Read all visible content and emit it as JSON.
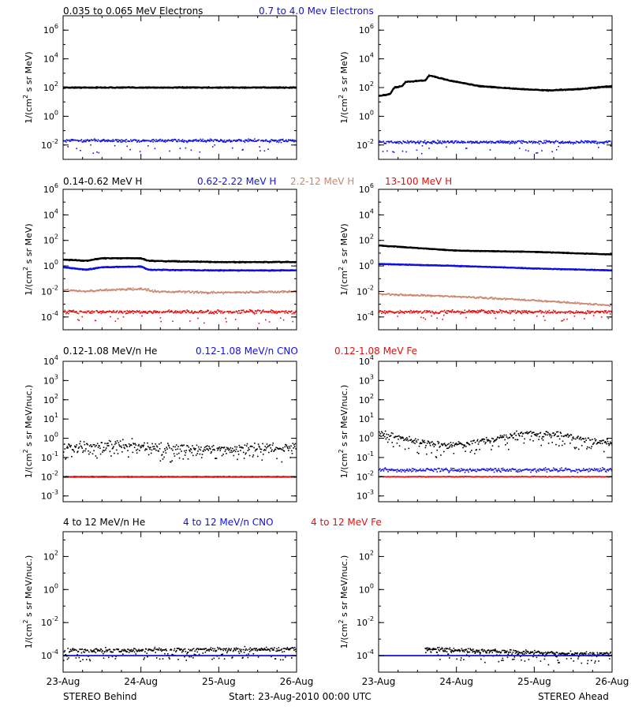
{
  "colors": {
    "black": "#000000",
    "blue": "#1010e0",
    "tan": "#c8876e",
    "red": "#e01010"
  },
  "footer": {
    "left": "STEREO Behind",
    "center": "Start: 23-Aug-2010 00:00 UTC",
    "right": "STEREO Ahead"
  },
  "x_ticks": [
    "23-Aug",
    "24-Aug",
    "25-Aug",
    "26-Aug"
  ],
  "rows": [
    {
      "id": "electrons",
      "legend": [
        {
          "text": "0.035 to 0.065 MeV Electrons",
          "color": "black"
        },
        {
          "text": "0.7 to 4.0 Mev Electrons",
          "color": "blue"
        }
      ]
    },
    {
      "id": "protons",
      "legend": [
        {
          "text": "0.14-0.62 MeV H",
          "color": "black"
        },
        {
          "text": "0.62-2.22 MeV H",
          "color": "blue"
        },
        {
          "text": "2.2-12 MeV H",
          "color": "tan"
        },
        {
          "text": "13-100 MeV H",
          "color": "red"
        }
      ]
    },
    {
      "id": "heavy-low",
      "legend": [
        {
          "text": "0.12-1.08 MeV/n He",
          "color": "black"
        },
        {
          "text": "0.12-1.08 MeV/n CNO",
          "color": "blue"
        },
        {
          "text": "0.12-1.08 MeV Fe",
          "color": "red"
        }
      ]
    },
    {
      "id": "heavy-high",
      "legend": [
        {
          "text": "4 to 12 MeV/n He",
          "color": "black"
        },
        {
          "text": "4 to 12 MeV/n CNO",
          "color": "blue"
        },
        {
          "text": "4 to 12 MeV Fe",
          "color": "red"
        }
      ]
    }
  ],
  "chart_data": [
    {
      "type": "scatter",
      "row": 0,
      "spacecraft": "STEREO Behind",
      "ylabel_main": "1/(cm",
      "ylabel_sup": "2",
      "ylabel_rest": " s sr MeV)",
      "ylim_log10": [
        -3,
        7
      ],
      "yticks": [
        {
          "b": "10",
          "e": "6",
          "v": 6
        },
        {
          "b": "10",
          "e": "4",
          "v": 4
        },
        {
          "b": "10",
          "e": "2",
          "v": 2
        },
        {
          "b": "10",
          "e": "0",
          "v": 0
        },
        {
          "b": "10",
          "e": "-2",
          "v": -2
        }
      ],
      "x": [
        0,
        3
      ],
      "x_unit": "days since 23-Aug-2010",
      "series": [
        {
          "color": "black",
          "kind": "line",
          "points": [
            [
              0,
              2
            ],
            [
              3,
              2
            ]
          ],
          "noise": 0.05
        },
        {
          "color": "blue",
          "kind": "band",
          "points": [
            [
              0,
              -1.7
            ],
            [
              3,
              -1.7
            ]
          ],
          "noise": 0.15,
          "outliers": true
        }
      ]
    },
    {
      "type": "scatter",
      "row": 0,
      "spacecraft": "STEREO Ahead",
      "ylabel_main": "1/(cm",
      "ylabel_sup": "2",
      "ylabel_rest": " s sr MeV)",
      "ylim_log10": [
        -3,
        7
      ],
      "yticks": [
        {
          "b": "10",
          "e": "6",
          "v": 6
        },
        {
          "b": "10",
          "e": "4",
          "v": 4
        },
        {
          "b": "10",
          "e": "2",
          "v": 2
        },
        {
          "b": "10",
          "e": "0",
          "v": 0
        },
        {
          "b": "10",
          "e": "-2",
          "v": -2
        }
      ],
      "x": [
        0,
        3
      ],
      "x_unit": "days since 23-Aug-2010",
      "series": [
        {
          "color": "black",
          "kind": "line",
          "points": [
            [
              0,
              1.4
            ],
            [
              0.15,
              1.55
            ],
            [
              0.2,
              2.0
            ],
            [
              0.3,
              2.1
            ],
            [
              0.35,
              2.4
            ],
            [
              0.6,
              2.5
            ],
            [
              0.65,
              2.85
            ],
            [
              0.9,
              2.5
            ],
            [
              1.3,
              2.1
            ],
            [
              1.8,
              1.9
            ],
            [
              2.2,
              1.8
            ],
            [
              2.6,
              1.9
            ],
            [
              3,
              2.1
            ]
          ],
          "noise": 0.05
        },
        {
          "color": "blue",
          "kind": "band",
          "points": [
            [
              0,
              -1.8
            ],
            [
              3,
              -1.8
            ]
          ],
          "noise": 0.15,
          "outliers": true
        }
      ]
    },
    {
      "type": "scatter",
      "row": 1,
      "spacecraft": "STEREO Behind",
      "ylabel_main": "1/(cm",
      "ylabel_sup": "2",
      "ylabel_rest": " s sr MeV)",
      "ylim_log10": [
        -5,
        6
      ],
      "yticks": [
        {
          "b": "10",
          "e": "6",
          "v": 6
        },
        {
          "b": "10",
          "e": "4",
          "v": 4
        },
        {
          "b": "10",
          "e": "2",
          "v": 2
        },
        {
          "b": "10",
          "e": "0",
          "v": 0
        },
        {
          "b": "10",
          "e": "-2",
          "v": -2
        },
        {
          "b": "10",
          "e": "-4",
          "v": -4
        }
      ],
      "x": [
        0,
        3
      ],
      "x_unit": "days since 23-Aug-2010",
      "series": [
        {
          "color": "black",
          "kind": "line",
          "points": [
            [
              0,
              0.5
            ],
            [
              0.3,
              0.4
            ],
            [
              0.5,
              0.6
            ],
            [
              1.0,
              0.6
            ],
            [
              1.1,
              0.4
            ],
            [
              2,
              0.3
            ],
            [
              3,
              0.3
            ]
          ],
          "noise": 0.05
        },
        {
          "color": "blue",
          "kind": "line",
          "points": [
            [
              0,
              -0.1
            ],
            [
              0.3,
              -0.3
            ],
            [
              0.5,
              -0.1
            ],
            [
              1.0,
              -0.05
            ],
            [
              1.1,
              -0.3
            ],
            [
              2,
              -0.35
            ],
            [
              3,
              -0.35
            ]
          ],
          "noise": 0.05
        },
        {
          "color": "tan",
          "kind": "band",
          "points": [
            [
              0,
              -1.9
            ],
            [
              0.3,
              -2.0
            ],
            [
              0.5,
              -1.9
            ],
            [
              1.0,
              -1.8
            ],
            [
              1.2,
              -2.0
            ],
            [
              2,
              -2.1
            ],
            [
              3,
              -2.0
            ]
          ],
          "noise": 0.12
        },
        {
          "color": "red",
          "kind": "band",
          "points": [
            [
              0,
              -3.6
            ],
            [
              3,
              -3.6
            ]
          ],
          "noise": 0.2,
          "outliers": true
        }
      ]
    },
    {
      "type": "scatter",
      "row": 1,
      "spacecraft": "STEREO Ahead",
      "ylabel_main": "1/(cm",
      "ylabel_sup": "2",
      "ylabel_rest": " s sr MeV)",
      "ylim_log10": [
        -5,
        6
      ],
      "yticks": [
        {
          "b": "10",
          "e": "6",
          "v": 6
        },
        {
          "b": "10",
          "e": "4",
          "v": 4
        },
        {
          "b": "10",
          "e": "2",
          "v": 2
        },
        {
          "b": "10",
          "e": "0",
          "v": 0
        },
        {
          "b": "10",
          "e": "-2",
          "v": -2
        },
        {
          "b": "10",
          "e": "-4",
          "v": -4
        }
      ],
      "x": [
        0,
        3
      ],
      "x_unit": "days since 23-Aug-2010",
      "series": [
        {
          "color": "black",
          "kind": "line",
          "points": [
            [
              0,
              1.6
            ],
            [
              0.5,
              1.4
            ],
            [
              1,
              1.2
            ],
            [
              2,
              1.1
            ],
            [
              3,
              0.9
            ]
          ],
          "noise": 0.04
        },
        {
          "color": "blue",
          "kind": "line",
          "points": [
            [
              0,
              0.15
            ],
            [
              1,
              0.0
            ],
            [
              2,
              -0.2
            ],
            [
              3,
              -0.35
            ]
          ],
          "noise": 0.04
        },
        {
          "color": "tan",
          "kind": "band",
          "points": [
            [
              0,
              -2.2
            ],
            [
              1,
              -2.4
            ],
            [
              2,
              -2.7
            ],
            [
              3,
              -3.1
            ]
          ],
          "noise": 0.1
        },
        {
          "color": "red",
          "kind": "band",
          "points": [
            [
              0,
              -3.6
            ],
            [
              3,
              -3.6
            ]
          ],
          "noise": 0.2,
          "outliers": true
        }
      ]
    },
    {
      "type": "scatter",
      "row": 2,
      "spacecraft": "STEREO Behind",
      "ylabel_main": "1/(cm",
      "ylabel_sup": "2",
      "ylabel_rest": " s sr MeV/nuc.)",
      "ylim_log10": [
        -3.3,
        4
      ],
      "yticks": [
        {
          "b": "10",
          "e": "4",
          "v": 4
        },
        {
          "b": "10",
          "e": "3",
          "v": 3
        },
        {
          "b": "10",
          "e": "2",
          "v": 2
        },
        {
          "b": "10",
          "e": "1",
          "v": 1
        },
        {
          "b": "10",
          "e": "0",
          "v": 0
        },
        {
          "b": "10",
          "e": "-1",
          "v": -1
        },
        {
          "b": "10",
          "e": "-2",
          "v": -2
        },
        {
          "b": "10",
          "e": "-3",
          "v": -3
        }
      ],
      "x": [
        0,
        3
      ],
      "x_unit": "days since 23-Aug-2010",
      "series": [
        {
          "color": "black",
          "kind": "scatter",
          "points": [
            [
              0,
              -0.5
            ],
            [
              0.7,
              -0.3
            ],
            [
              1.2,
              -0.5
            ],
            [
              2,
              -0.55
            ],
            [
              3,
              -0.5
            ]
          ],
          "noise": 0.25
        },
        {
          "color": "blue",
          "kind": "floor",
          "points": [
            [
              0,
              -2.0
            ],
            [
              3,
              -2.0
            ]
          ],
          "noise": 0.02
        },
        {
          "color": "red",
          "kind": "floor",
          "points": [
            [
              0,
              -2.02
            ],
            [
              3,
              -2.02
            ]
          ],
          "noise": 0.01
        }
      ]
    },
    {
      "type": "scatter",
      "row": 2,
      "spacecraft": "STEREO Ahead",
      "ylabel_main": "1/(cm",
      "ylabel_sup": "2",
      "ylabel_rest": " s sr MeV/nuc.)",
      "ylim_log10": [
        -3.3,
        4
      ],
      "yticks": [
        {
          "b": "10",
          "e": "4",
          "v": 4
        },
        {
          "b": "10",
          "e": "3",
          "v": 3
        },
        {
          "b": "10",
          "e": "2",
          "v": 2
        },
        {
          "b": "10",
          "e": "1",
          "v": 1
        },
        {
          "b": "10",
          "e": "0",
          "v": 0
        },
        {
          "b": "10",
          "e": "-1",
          "v": -1
        },
        {
          "b": "10",
          "e": "-2",
          "v": -2
        },
        {
          "b": "10",
          "e": "-3",
          "v": -3
        }
      ],
      "x": [
        0,
        3
      ],
      "x_unit": "days since 23-Aug-2010",
      "series": [
        {
          "color": "black",
          "kind": "scatter",
          "points": [
            [
              0,
              0.25
            ],
            [
              0.4,
              -0.1
            ],
            [
              0.9,
              -0.4
            ],
            [
              1.4,
              -0.1
            ],
            [
              1.9,
              0.3
            ],
            [
              2.3,
              0.2
            ],
            [
              2.7,
              -0.1
            ],
            [
              3,
              -0.25
            ]
          ],
          "noise": 0.15
        },
        {
          "color": "blue",
          "kind": "floor",
          "points": [
            [
              0,
              -1.65
            ],
            [
              3,
              -1.65
            ]
          ],
          "noise": 0.15
        },
        {
          "color": "red",
          "kind": "floor",
          "points": [
            [
              0,
              -2.0
            ],
            [
              3,
              -2.0
            ]
          ],
          "noise": 0.03
        }
      ]
    },
    {
      "type": "scatter",
      "row": 3,
      "spacecraft": "STEREO Behind",
      "ylabel_main": "1/(cm",
      "ylabel_sup": "2",
      "ylabel_rest": " s sr MeV/nuc.)",
      "ylim_log10": [
        -5,
        3.5
      ],
      "yticks": [
        {
          "b": "10",
          "e": "2",
          "v": 2
        },
        {
          "b": "10",
          "e": "0",
          "v": 0
        },
        {
          "b": "10",
          "e": "-2",
          "v": -2
        },
        {
          "b": "10",
          "e": "-4",
          "v": -4
        }
      ],
      "x": [
        0,
        3
      ],
      "x_unit": "days since 23-Aug-2010",
      "series": [
        {
          "color": "black",
          "kind": "scatter",
          "points": [
            [
              0,
              -3.7
            ],
            [
              3,
              -3.6
            ]
          ],
          "noise": 0.12
        },
        {
          "color": "blue",
          "kind": "floor",
          "points": [
            [
              0,
              -4.0
            ],
            [
              3,
              -4.0
            ]
          ],
          "noise": 0.0
        }
      ]
    },
    {
      "type": "scatter",
      "row": 3,
      "spacecraft": "STEREO Ahead",
      "ylabel_main": "1/(cm",
      "ylabel_sup": "2",
      "ylabel_rest": " s sr MeV/nuc.)",
      "ylim_log10": [
        -5,
        3.5
      ],
      "yticks": [
        {
          "b": "10",
          "e": "2",
          "v": 2
        },
        {
          "b": "10",
          "e": "0",
          "v": 0
        },
        {
          "b": "10",
          "e": "-2",
          "v": -2
        },
        {
          "b": "10",
          "e": "-4",
          "v": -4
        }
      ],
      "x": [
        0,
        3
      ],
      "x_unit": "days since 23-Aug-2010",
      "series": [
        {
          "color": "black",
          "kind": "scatter",
          "points": [
            [
              0.6,
              -3.6
            ],
            [
              1.2,
              -3.7
            ],
            [
              1.8,
              -3.8
            ],
            [
              2.6,
              -3.9
            ]
          ],
          "noise": 0.12,
          "start": 0.6
        },
        {
          "color": "blue",
          "kind": "floor",
          "points": [
            [
              0,
              -4.0
            ],
            [
              3,
              -4.0
            ]
          ],
          "noise": 0.0
        }
      ]
    }
  ]
}
